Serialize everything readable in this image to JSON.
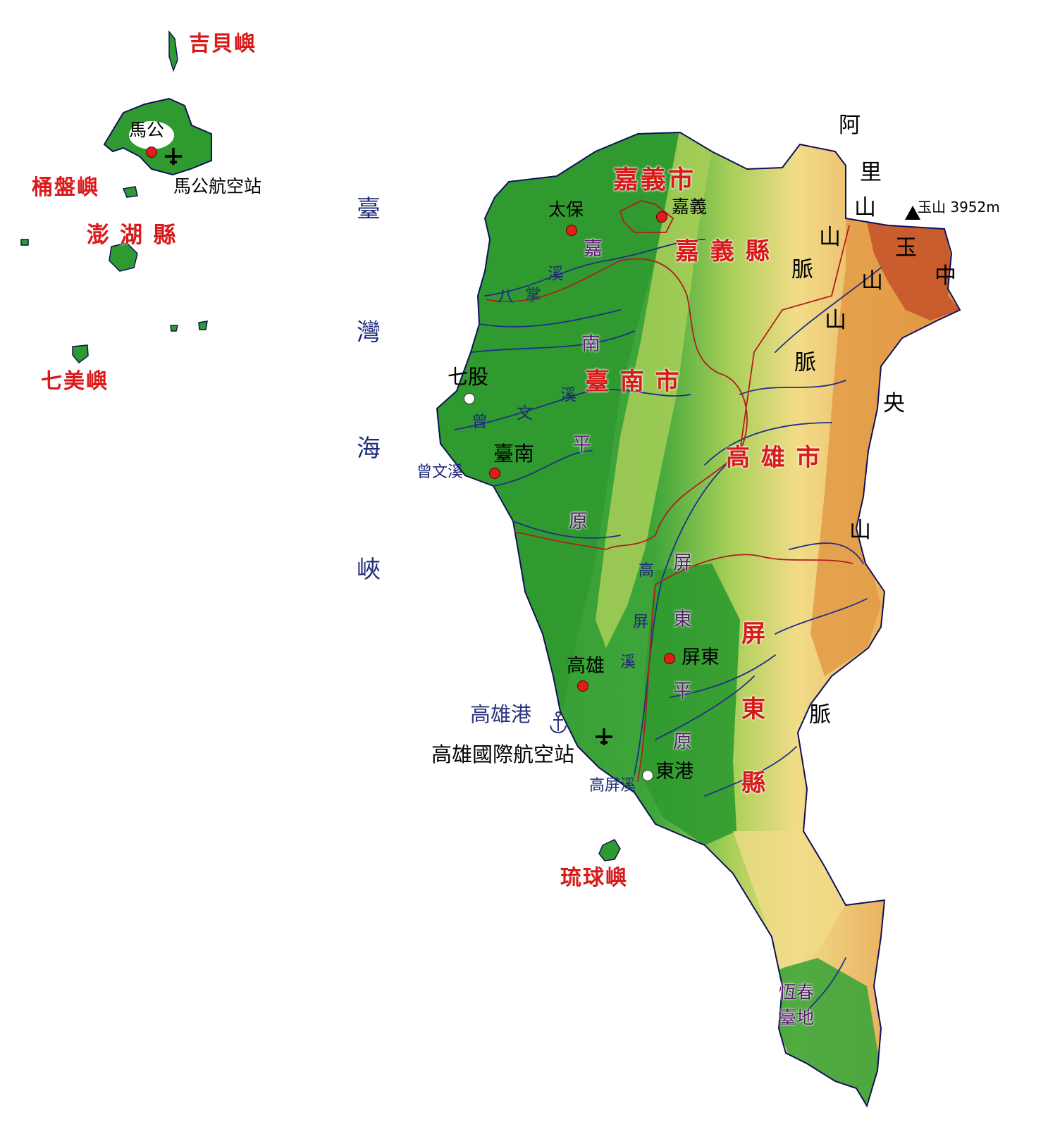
{
  "penghu": {
    "jibei": "吉貝嶼",
    "tongpan": "桶盤嶼",
    "county": "澎 湖 縣",
    "qimei": "七美嶼",
    "magong": "馬公",
    "magong_airport": "馬公航空站"
  },
  "strait": [
    "臺",
    "灣",
    "海",
    "峽"
  ],
  "admin": {
    "chiayi_city": "嘉義市",
    "chiayi_county": "嘉 義 縣",
    "tainan_city": "臺 南 市",
    "kaohsiung_city": "高 雄 市",
    "pingtung_county": [
      "屏",
      "東",
      "縣"
    ]
  },
  "cities": {
    "taibao": "太保",
    "chiayi": "嘉義",
    "qigu": "七股",
    "tainan": "臺南",
    "kaohsiung": "高雄",
    "pingtung": "屏東",
    "donggang": "東港",
    "kaohsiung_airport": "高雄國際航空站",
    "kaohsiung_port": "高雄港",
    "liuqiu": "琉球嶼"
  },
  "rivers": {
    "bazhang": [
      "八",
      "掌"
    ],
    "creek_char": "溪",
    "zengwen": [
      "曾",
      "文",
      "溪"
    ],
    "zengwen_mouth": "曾文溪",
    "gaoping": [
      "高",
      "屏",
      "溪"
    ],
    "gaoping_mouth": "高屏溪"
  },
  "plains": {
    "chianan": [
      "嘉",
      "南",
      "平",
      "原"
    ],
    "pingtung": [
      "屏",
      "東",
      "平",
      "原"
    ],
    "hengchun": [
      "恆春",
      "臺地"
    ]
  },
  "mountains": {
    "alishan": [
      "阿",
      "里",
      "山",
      "山",
      "脈"
    ],
    "yushan_range": [
      "玉",
      "山",
      "山",
      "脈"
    ],
    "central_range": [
      "中",
      "央",
      "山",
      "脈"
    ],
    "yushan_peak": "玉山 3952m"
  },
  "colors": {
    "lowland": "#2f9a2f",
    "upland": "#a8cf58",
    "hills": "#f2dc88",
    "mountain": "#e09540",
    "peak": "#c0501e",
    "county_border": "#b01e1e",
    "river": "#20308a",
    "coast": "#10105a"
  }
}
